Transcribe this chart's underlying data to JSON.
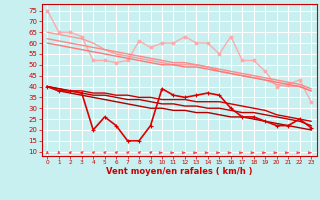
{
  "title": "",
  "xlabel": "Vent moyen/en rafales ( km/h )",
  "bg_color": "#c8f0f0",
  "grid_color": "#ffffff",
  "xlim": [
    -0.5,
    23.5
  ],
  "ylim": [
    8,
    78
  ],
  "yticks": [
    10,
    15,
    20,
    25,
    30,
    35,
    40,
    45,
    50,
    55,
    60,
    65,
    70,
    75
  ],
  "xticks": [
    0,
    1,
    2,
    3,
    4,
    5,
    6,
    7,
    8,
    9,
    10,
    11,
    12,
    13,
    14,
    15,
    16,
    17,
    18,
    19,
    20,
    21,
    22,
    23
  ],
  "line_pink_marker": {
    "y": [
      75,
      65,
      65,
      63,
      52,
      52,
      51,
      52,
      61,
      58,
      60,
      60,
      63,
      60,
      60,
      55,
      63,
      52,
      52,
      47,
      40,
      41,
      43,
      33
    ],
    "color": "#ffaaaa",
    "marker": "o",
    "markersize": 2.0,
    "linewidth": 1.0
  },
  "line_pink1": {
    "y": [
      65,
      64,
      63,
      62,
      60,
      57,
      55,
      54,
      53,
      52,
      51,
      50,
      50,
      50,
      49,
      47,
      46,
      45,
      44,
      43,
      41,
      40,
      40,
      38
    ],
    "color": "#ff9999",
    "linewidth": 1.0
  },
  "line_pink2": {
    "y": [
      62,
      61,
      60,
      59,
      58,
      57,
      56,
      55,
      54,
      53,
      52,
      51,
      51,
      50,
      49,
      48,
      47,
      46,
      45,
      44,
      43,
      42,
      41,
      39
    ],
    "color": "#ff8888",
    "linewidth": 1.0
  },
  "line_pink3": {
    "y": [
      60,
      59,
      58,
      57,
      56,
      55,
      54,
      53,
      52,
      51,
      50,
      50,
      49,
      49,
      48,
      47,
      46,
      45,
      44,
      43,
      42,
      41,
      40,
      38
    ],
    "color": "#ff7777",
    "linewidth": 1.0
  },
  "line_red_marker": {
    "y": [
      40,
      38,
      38,
      37,
      20,
      26,
      22,
      15,
      15,
      22,
      39,
      36,
      35,
      36,
      37,
      36,
      30,
      26,
      26,
      24,
      22,
      22,
      25,
      21
    ],
    "color": "#dd0000",
    "marker": "+",
    "markersize": 3.5,
    "linewidth": 1.2
  },
  "line_red1": {
    "y": [
      40,
      39,
      38,
      38,
      37,
      37,
      36,
      36,
      35,
      35,
      34,
      34,
      34,
      33,
      33,
      33,
      32,
      31,
      30,
      29,
      27,
      26,
      25,
      24
    ],
    "color": "#cc0000",
    "linewidth": 1.0
  },
  "line_red2": {
    "y": [
      40,
      39,
      38,
      37,
      36,
      36,
      35,
      34,
      34,
      33,
      32,
      32,
      31,
      31,
      30,
      30,
      29,
      28,
      28,
      27,
      26,
      25,
      24,
      22
    ],
    "color": "#bb0000",
    "linewidth": 1.0
  },
  "line_red3": {
    "y": [
      40,
      38,
      37,
      36,
      35,
      34,
      33,
      32,
      31,
      30,
      30,
      29,
      29,
      28,
      28,
      27,
      26,
      26,
      25,
      24,
      23,
      22,
      21,
      20
    ],
    "color": "#aa0000",
    "linewidth": 1.0
  },
  "arrows": {
    "x": [
      0,
      1,
      2,
      3,
      4,
      5,
      6,
      7,
      8,
      9,
      10,
      11,
      12,
      13,
      14,
      15,
      16,
      17,
      18,
      19,
      20,
      21,
      22,
      23
    ],
    "angles_deg": [
      90,
      90,
      65,
      50,
      50,
      50,
      50,
      50,
      50,
      50,
      0,
      0,
      0,
      0,
      0,
      0,
      0,
      0,
      0,
      0,
      0,
      0,
      0,
      0
    ],
    "color": "#ff4444"
  },
  "tick_color": "#cc0000",
  "label_color": "#cc0000",
  "axis_color": "#cc0000"
}
